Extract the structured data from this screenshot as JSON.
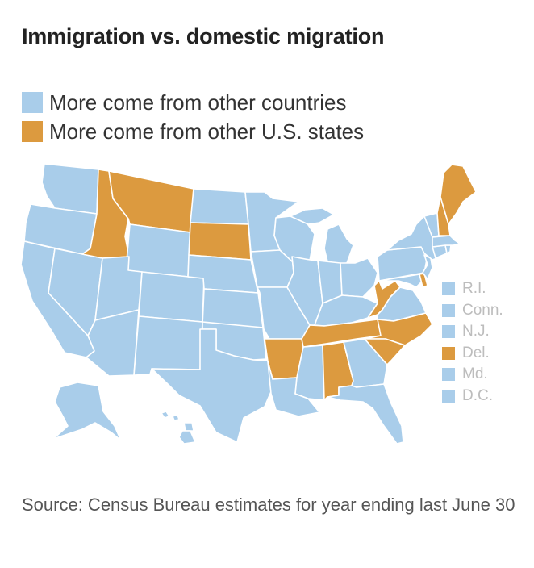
{
  "title": "Immigration vs. domestic migration",
  "colors": {
    "foreign": "#a9cdea",
    "domestic": "#dc9a3f",
    "border": "#ffffff",
    "background": "#ffffff"
  },
  "legend": [
    {
      "label": "More come from other countries",
      "category": "foreign"
    },
    {
      "label": "More come from other U.S. states",
      "category": "domestic"
    }
  ],
  "small_states": [
    {
      "label": "R.I.",
      "category": "foreign"
    },
    {
      "label": "Conn.",
      "category": "foreign"
    },
    {
      "label": "N.J.",
      "category": "foreign"
    },
    {
      "label": "Del.",
      "category": "domestic"
    },
    {
      "label": "Md.",
      "category": "foreign"
    },
    {
      "label": "D.C.",
      "category": "foreign"
    }
  ],
  "states": {
    "WA": "foreign",
    "OR": "foreign",
    "CA": "foreign",
    "NV": "foreign",
    "ID": "domestic",
    "MT": "domestic",
    "WY": "foreign",
    "UT": "foreign",
    "AZ": "foreign",
    "CO": "foreign",
    "NM": "foreign",
    "ND": "foreign",
    "SD": "domestic",
    "NE": "foreign",
    "KS": "foreign",
    "OK": "foreign",
    "TX": "foreign",
    "MN": "foreign",
    "IA": "foreign",
    "MO": "foreign",
    "AR": "domestic",
    "LA": "foreign",
    "WI": "foreign",
    "IL": "foreign",
    "MS": "foreign",
    "MI": "foreign",
    "IN": "foreign",
    "KY": "foreign",
    "TN": "domestic",
    "AL": "domestic",
    "OH": "foreign",
    "WV": "domestic",
    "VA": "foreign",
    "NC": "domestic",
    "SC": "domestic",
    "GA": "foreign",
    "FL": "foreign",
    "PA": "foreign",
    "NY": "foreign",
    "VT": "foreign",
    "NH": "domestic",
    "ME": "domestic",
    "MA": "foreign",
    "RI": "foreign",
    "CT": "foreign",
    "NJ": "foreign",
    "DE": "domestic",
    "MD": "foreign",
    "AK": "foreign",
    "HI": "foreign"
  },
  "source": "Source: Census Bureau estimates for year ending last June 30"
}
